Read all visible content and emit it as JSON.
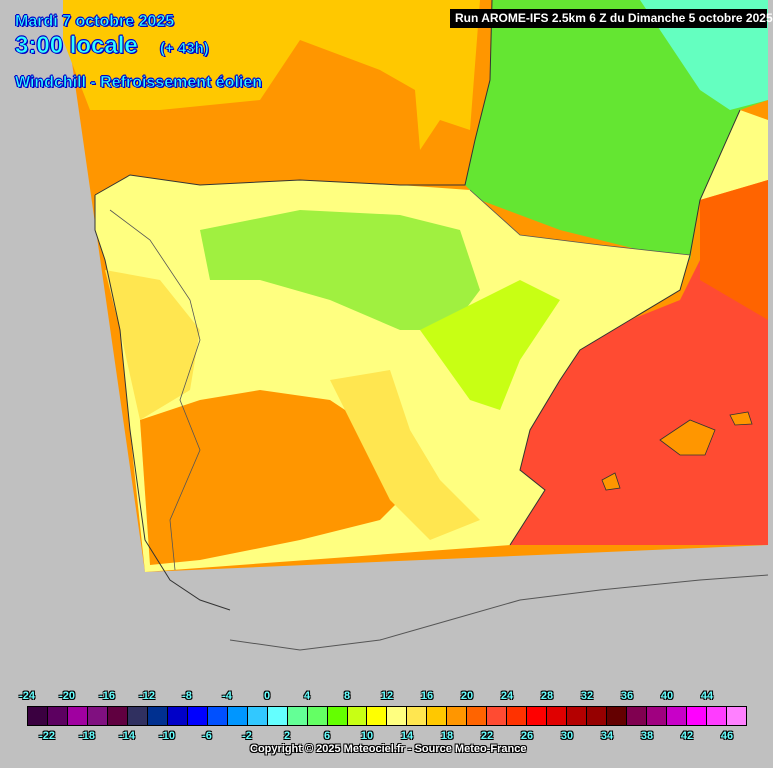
{
  "header": {
    "date": "Mardi 7 octobre 2025",
    "time": "3:00 locale",
    "lead": "(+ 43h)",
    "parameter": "Windchill - Refroissement éolien",
    "run": "Run AROME-IFS 2.5km 6 Z du Dimanche 5 octobre 2025"
  },
  "legend": {
    "labels_top": [
      "-24",
      "-20",
      "-16",
      "-12",
      "-8",
      "-4",
      "0",
      "4",
      "8",
      "12",
      "16",
      "20",
      "24",
      "28",
      "32",
      "36",
      "40",
      "44"
    ],
    "labels_bottom": [
      "-22",
      "-18",
      "-14",
      "-10",
      "-6",
      "-2",
      "2",
      "6",
      "10",
      "14",
      "18",
      "22",
      "26",
      "30",
      "34",
      "38",
      "42",
      "46"
    ],
    "colors": [
      "#3a0040",
      "#5c0060",
      "#a000a0",
      "#801080",
      "#600040",
      "#303060",
      "#003090",
      "#0000c8",
      "#0000ff",
      "#0050ff",
      "#0096ff",
      "#32c8ff",
      "#64ffff",
      "#64ff96",
      "#64ff64",
      "#64ff00",
      "#c8ff14",
      "#ffff00",
      "#ffff80",
      "#ffe650",
      "#ffc800",
      "#ff9600",
      "#ff6400",
      "#ff4b32",
      "#ff3200",
      "#ff0000",
      "#e00000",
      "#b40000",
      "#960000",
      "#640000",
      "#800050",
      "#a00080",
      "#c800c8",
      "#ff00ff",
      "#ff3cff",
      "#ff80ff"
    ]
  },
  "copyright": "Copyright © 2025 Meteociel.fr - Source Meteo-France",
  "colors": {
    "background": "#c0c0c0",
    "title_text": "#33ffff",
    "title_outline": "#0000c8"
  }
}
